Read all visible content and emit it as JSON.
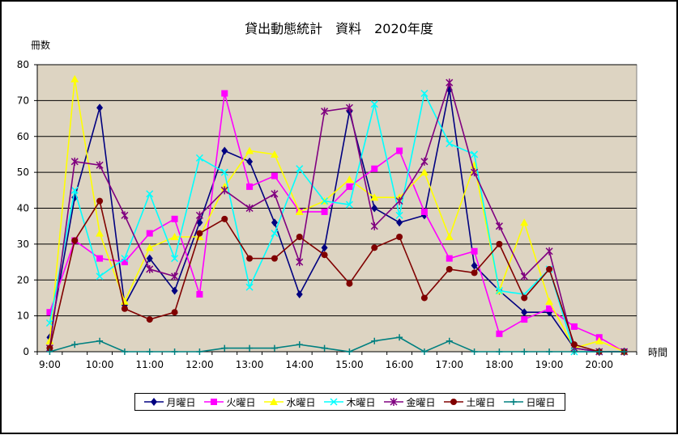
{
  "chart_data": {
    "type": "line",
    "title": "貸出動態統計　資料　2020年度",
    "ylabel": "冊数",
    "xlabel": "時間",
    "ylim": [
      0,
      80
    ],
    "yticks": [
      0,
      10,
      20,
      30,
      40,
      50,
      60,
      70,
      80
    ],
    "xtick_labels": [
      "9:00",
      "10:00",
      "11:00",
      "12:00",
      "13:00",
      "14:00",
      "15:00",
      "16:00",
      "17:00",
      "18:00",
      "19:00",
      "20:00"
    ],
    "x": [
      "9:00",
      "9:30",
      "10:00",
      "10:30",
      "11:00",
      "11:30",
      "12:00",
      "12:30",
      "13:00",
      "13:30",
      "14:00",
      "14:30",
      "15:00",
      "15:30",
      "16:00",
      "16:30",
      "17:00",
      "17:30",
      "18:00",
      "18:30",
      "19:00",
      "19:30",
      "20:00",
      "20:30"
    ],
    "plot_background": "#ddd4c2",
    "grid": true,
    "legend_position": "bottom",
    "series": [
      {
        "name": "月曜日",
        "color": "#000080",
        "marker": "diamond",
        "values": [
          4,
          43,
          68,
          13,
          26,
          17,
          36,
          56,
          53,
          36,
          16,
          29,
          67,
          40,
          36,
          38,
          73,
          24,
          17,
          11,
          11,
          1,
          0,
          0
        ]
      },
      {
        "name": "火曜日",
        "color": "#ff00ff",
        "marker": "square",
        "values": [
          11,
          31,
          26,
          25,
          33,
          37,
          16,
          72,
          46,
          49,
          39,
          39,
          46,
          51,
          56,
          39,
          26,
          28,
          5,
          9,
          12,
          7,
          4,
          0
        ]
      },
      {
        "name": "水曜日",
        "color": "#ffff00",
        "marker": "triangle",
        "values": [
          3,
          76,
          33,
          14,
          29,
          32,
          32,
          46,
          56,
          55,
          39,
          42,
          48,
          43,
          43,
          50,
          32,
          52,
          17,
          36,
          14,
          1,
          3,
          0
        ]
      },
      {
        "name": "木曜日",
        "color": "#00ffff",
        "marker": "x",
        "values": [
          8,
          45,
          21,
          26,
          44,
          26,
          54,
          50,
          18,
          33,
          51,
          42,
          41,
          69,
          38,
          72,
          58,
          55,
          17,
          16,
          23,
          0,
          0,
          0
        ]
      },
      {
        "name": "金曜日",
        "color": "#800080",
        "marker": "star",
        "values": [
          1,
          53,
          52,
          38,
          23,
          21,
          38,
          45,
          40,
          44,
          25,
          67,
          68,
          35,
          42,
          53,
          75,
          50,
          35,
          21,
          28,
          1,
          0,
          0
        ]
      },
      {
        "name": "土曜日",
        "color": "#800000",
        "marker": "circle",
        "values": [
          1,
          31,
          42,
          12,
          9,
          11,
          33,
          37,
          26,
          26,
          32,
          27,
          19,
          29,
          32,
          15,
          23,
          22,
          30,
          15,
          23,
          2,
          0,
          0
        ]
      },
      {
        "name": "日曜日",
        "color": "#008080",
        "marker": "plus",
        "values": [
          0,
          2,
          3,
          0,
          0,
          0,
          0,
          1,
          1,
          1,
          2,
          1,
          0,
          3,
          4,
          0,
          3,
          0,
          0,
          0,
          0,
          0,
          0,
          0
        ]
      }
    ]
  }
}
